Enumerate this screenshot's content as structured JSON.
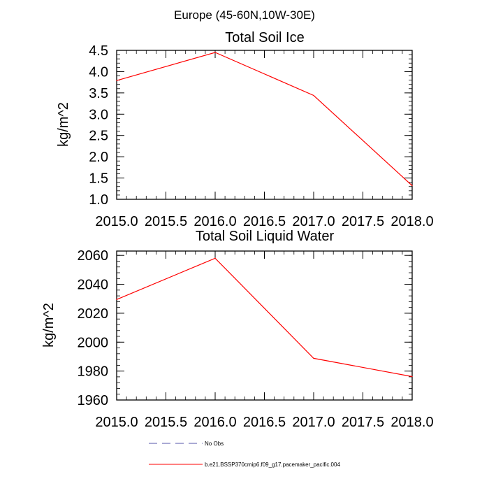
{
  "figure": {
    "title": "Europe (45-60N,10W-30E)"
  },
  "chart_data": [
    {
      "type": "line",
      "title": "Total Soil Ice",
      "xlabel": "",
      "ylabel": "kg/m^2",
      "xlim": [
        2015.0,
        2018.0
      ],
      "ylim": [
        1.0,
        4.5
      ],
      "x_ticks": [
        "2015.0",
        "2015.5",
        "2016.0",
        "2016.5",
        "2017.0",
        "2017.5",
        "2018.0"
      ],
      "y_ticks": [
        "1.0",
        "1.5",
        "2.0",
        "2.5",
        "3.0",
        "3.5",
        "4.0",
        "4.5"
      ],
      "x_tick_values": [
        2015.0,
        2015.5,
        2016.0,
        2016.5,
        2017.0,
        2017.5,
        2018.0
      ],
      "y_tick_values": [
        1.0,
        1.5,
        2.0,
        2.5,
        3.0,
        3.5,
        4.0,
        4.5
      ],
      "series": [
        {
          "name": "b.e21.BSSP370cmip6.f09_g17.pacemaker_pacific.004",
          "color": "#ff0000",
          "x": [
            2015,
            2016,
            2017,
            2018
          ],
          "values": [
            3.79,
            4.45,
            3.44,
            1.32
          ]
        }
      ]
    },
    {
      "type": "line",
      "title": "Total Soil Liquid Water",
      "xlabel": "",
      "ylabel": "kg/m^2",
      "xlim": [
        2015.0,
        2018.0
      ],
      "ylim": [
        1960,
        2063
      ],
      "x_ticks": [
        "2015.0",
        "2015.5",
        "2016.0",
        "2016.5",
        "2017.0",
        "2017.5",
        "2018.0"
      ],
      "y_ticks": [
        "1960",
        "1980",
        "2000",
        "2020",
        "2040",
        "2060"
      ],
      "x_tick_values": [
        2015.0,
        2015.5,
        2016.0,
        2016.5,
        2017.0,
        2017.5,
        2018.0
      ],
      "y_tick_values": [
        1960,
        1980,
        2000,
        2020,
        2040,
        2060
      ],
      "series": [
        {
          "name": "b.e21.BSSP370cmip6.f09_g17.pacemaker_pacific.004",
          "color": "#ff0000",
          "x": [
            2015,
            2016,
            2017,
            2018
          ],
          "values": [
            2029.5,
            2058,
            1988.8,
            1976.2
          ]
        }
      ]
    }
  ],
  "legend": {
    "placement": "bottom",
    "items": [
      {
        "label": "No Obs",
        "color": "#5555aa",
        "style": "dashed"
      },
      {
        "label": "b.e21.BSSP370cmip6.f09_g17.pacemaker_pacific.004",
        "color": "#ff0000",
        "style": "solid"
      }
    ]
  }
}
